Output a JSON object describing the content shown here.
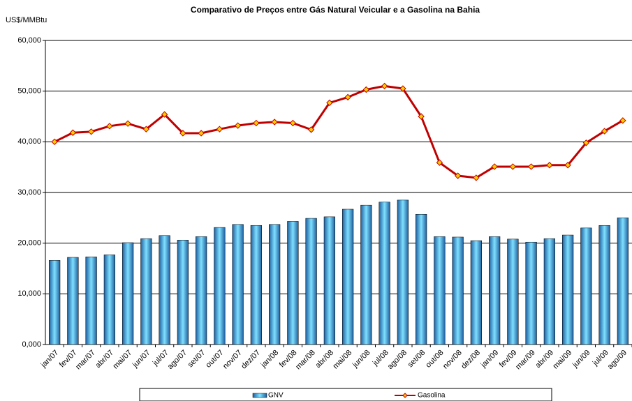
{
  "chart_data": {
    "type": "bar-line",
    "title": "Comparativo de Preços entre Gás Natural Veicular e a Gasolina na Bahia",
    "y_label": "US$/MMBtu",
    "categories": [
      "jan/07",
      "fev/07",
      "mar/07",
      "abr/07",
      "mai/07",
      "jun/07",
      "jul/07",
      "ago/07",
      "set/07",
      "out/07",
      "nov/07",
      "dez/07",
      "jan/08",
      "fev/08",
      "mar/08",
      "abr/08",
      "mai/08",
      "jun/08",
      "jul/08",
      "ago/08",
      "set/08",
      "out/08",
      "nov/08",
      "dez/08",
      "jan/09",
      "fev/09",
      "mar/09",
      "abr/09",
      "mai/09",
      "jun/09",
      "jul/09",
      "ago/09"
    ],
    "series": [
      {
        "name": "GNV",
        "type": "bar",
        "color": "#1f5f9f",
        "values": [
          16.6,
          17.2,
          17.3,
          17.7,
          20.1,
          20.9,
          21.5,
          20.6,
          21.3,
          23.1,
          23.7,
          23.5,
          23.7,
          24.3,
          24.9,
          25.2,
          26.7,
          27.5,
          28.1,
          28.5,
          25.7,
          21.3,
          21.2,
          20.5,
          21.3,
          20.8,
          20.2,
          20.9,
          21.6,
          23.0,
          23.5,
          25.0
        ]
      },
      {
        "name": "Gasolina",
        "type": "line",
        "color": "#c00000",
        "marker_color": "#ffcc00",
        "values": [
          40.0,
          41.8,
          42.0,
          43.1,
          43.6,
          42.5,
          45.4,
          41.7,
          41.7,
          42.5,
          43.2,
          43.7,
          43.9,
          43.7,
          42.4,
          47.7,
          48.8,
          50.3,
          51.0,
          50.5,
          45.0,
          35.9,
          33.3,
          32.9,
          35.1,
          35.1,
          35.1,
          35.4,
          35.4,
          39.8,
          42.1,
          44.2
        ]
      }
    ],
    "ylim": [
      0,
      60
    ],
    "yticks": [
      {
        "value": 0,
        "label": "0,000"
      },
      {
        "value": 10,
        "label": "10,000"
      },
      {
        "value": 20,
        "label": "20,000"
      },
      {
        "value": 30,
        "label": "30,000"
      },
      {
        "value": 40,
        "label": "40,000"
      },
      {
        "value": 50,
        "label": "50,000"
      },
      {
        "value": 60,
        "label": "60,000"
      }
    ],
    "grid": true
  }
}
